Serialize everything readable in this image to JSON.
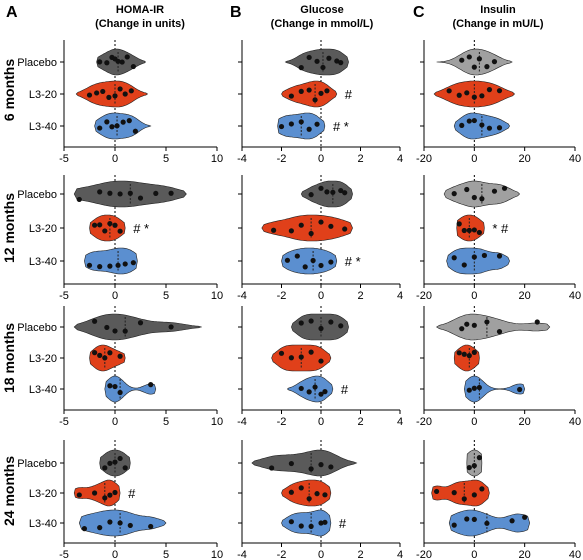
{
  "panels": [
    {
      "letter": "A",
      "title_line1": "HOMA-IR",
      "title_line2": "(Change in units)",
      "ticks": [
        "-5",
        "0",
        "5",
        "10"
      ],
      "xlim": [
        -5,
        10
      ]
    },
    {
      "letter": "B",
      "title_line1": "Glucose",
      "title_line2": "(Change in mmol/L)",
      "ticks": [
        "-4",
        "-2",
        "0",
        "2",
        "4"
      ],
      "xlim": [
        -4,
        4
      ]
    },
    {
      "letter": "C",
      "title_line1": "Insulin",
      "title_line2": "(Change in mU/L)",
      "ticks": [
        "-20",
        "0",
        "20",
        "40"
      ],
      "xlim": [
        -20,
        40
      ]
    }
  ],
  "groups": [
    "Placebo",
    "L3-20",
    "L3-40"
  ],
  "timepoints": [
    "6 months",
    "12 months",
    "18 months",
    "24 months"
  ],
  "colors": {
    "Placebo": "#5a5a5a",
    "L3-20": "#e0401a",
    "L3-40": "#5b8fd0",
    "insulin_placebo": "#a0a0a0"
  },
  "chart_data": {
    "type": "violin",
    "annotations_note_symbols": [
      "#",
      "*"
    ],
    "rows": [
      {
        "timepoint": "6 months",
        "panels": [
          {
            "metric": "HOMA-IR",
            "series": [
              {
                "group": "Placebo",
                "points": [
                  -1.5,
                  -0.8,
                  -0.3,
                  0.0,
                  0.3,
                  0.7,
                  1.2,
                  1.8
                ],
                "range": [
                  -1.8,
                  3.0
                ],
                "annot": ""
              },
              {
                "group": "L3-20",
                "points": [
                  -2.5,
                  -1.8,
                  -1.2,
                  -0.6,
                  0.0,
                  0.5,
                  1.0,
                  1.6
                ],
                "range": [
                  -3.8,
                  3.2
                ],
                "annot": ""
              },
              {
                "group": "L3-40",
                "points": [
                  -1.5,
                  -0.8,
                  -0.3,
                  0.2,
                  0.8,
                  1.4,
                  2.0
                ],
                "range": [
                  -2.0,
                  3.5
                ],
                "annot": ""
              }
            ]
          },
          {
            "metric": "Glucose",
            "series": [
              {
                "group": "Placebo",
                "points": [
                  -1.0,
                  -0.6,
                  -0.2,
                  0.1,
                  0.4,
                  0.8,
                  1.0
                ],
                "range": [
                  -1.8,
                  1.4
                ],
                "annot": ""
              },
              {
                "group": "L3-20",
                "points": [
                  -1.5,
                  -1.0,
                  -0.6,
                  -0.3,
                  0.0,
                  0.3
                ],
                "range": [
                  -2.0,
                  0.8
                ],
                "annot": "#"
              },
              {
                "group": "L3-40",
                "points": [
                  -2.0,
                  -1.5,
                  -1.0,
                  -0.6,
                  -0.2
                ],
                "range": [
                  -2.2,
                  0.2
                ],
                "annot": "# *"
              }
            ]
          },
          {
            "metric": "Insulin",
            "series": [
              {
                "group": "Placebo",
                "points": [
                  -5,
                  -2,
                  0,
                  2,
                  5,
                  8
                ],
                "range": [
                  -15,
                  15
                ],
                "annot": ""
              },
              {
                "group": "L3-20",
                "points": [
                  -10,
                  -6,
                  -3,
                  0,
                  3,
                  6,
                  10
                ],
                "range": [
                  -16,
                  16
                ],
                "annot": ""
              },
              {
                "group": "L3-40",
                "points": [
                  -5,
                  -2,
                  0,
                  3,
                  6,
                  10
                ],
                "range": [
                  -8,
                  14
                ],
                "annot": ""
              }
            ]
          }
        ]
      },
      {
        "timepoint": "12 months",
        "panels": [
          {
            "metric": "HOMA-IR",
            "series": [
              {
                "group": "Placebo",
                "points": [
                  -3.5,
                  -1.5,
                  -0.5,
                  0.5,
                  1.5,
                  2.5,
                  4.0,
                  5.5
                ],
                "range": [
                  -4.0,
                  7.0
                ],
                "annot": ""
              },
              {
                "group": "L3-20",
                "points": [
                  -2.0,
                  -1.5,
                  -1.0,
                  -0.5,
                  0.0,
                  0.5
                ],
                "range": [
                  -2.5,
                  1.0
                ],
                "annot": "# *"
              },
              {
                "group": "L3-40",
                "points": [
                  -2.5,
                  -1.5,
                  -0.5,
                  0.3,
                  1.0,
                  1.8
                ],
                "range": [
                  -3.0,
                  2.2
                ],
                "annot": ""
              }
            ]
          },
          {
            "metric": "Glucose",
            "series": [
              {
                "group": "Placebo",
                "points": [
                  -0.5,
                  0.0,
                  0.3,
                  0.6,
                  1.0,
                  1.2
                ],
                "range": [
                  -1.0,
                  1.6
                ],
                "annot": ""
              },
              {
                "group": "L3-20",
                "points": [
                  -2.4,
                  -1.5,
                  -1.0,
                  -0.5,
                  0.0,
                  0.5,
                  1.2
                ],
                "range": [
                  -3.0,
                  1.6
                ],
                "annot": ""
              },
              {
                "group": "L3-40",
                "points": [
                  -1.7,
                  -1.2,
                  -0.8,
                  -0.4,
                  0.0,
                  0.5
                ],
                "range": [
                  -2.0,
                  0.8
                ],
                "annot": "# *"
              }
            ]
          },
          {
            "metric": "Insulin",
            "series": [
              {
                "group": "Placebo",
                "points": [
                  -8,
                  -3,
                  0,
                  3,
                  8,
                  12
                ],
                "range": [
                  -12,
                  18
                ],
                "annot": ""
              },
              {
                "group": "L3-20",
                "points": [
                  -6,
                  -4,
                  -2,
                  0,
                  2
                ],
                "range": [
                  -7,
                  4
                ],
                "annot": "* #"
              },
              {
                "group": "L3-40",
                "points": [
                  -8,
                  -4,
                  0,
                  4,
                  10
                ],
                "range": [
                  -11,
                  14
                ],
                "annot": ""
              }
            ]
          }
        ]
      },
      {
        "timepoint": "18 months",
        "panels": [
          {
            "metric": "HOMA-IR",
            "series": [
              {
                "group": "Placebo",
                "points": [
                  -2.0,
                  -0.8,
                  0.0,
                  1.0,
                  2.5,
                  5.5
                ],
                "range": [
                  -4.0,
                  8.5
                ],
                "annot": ""
              },
              {
                "group": "L3-20",
                "points": [
                  -2.0,
                  -1.5,
                  -1.0,
                  -0.5,
                  0.5
                ],
                "range": [
                  -2.5,
                  1.0
                ],
                "annot": ""
              },
              {
                "group": "L3-40",
                "points": [
                  -0.5,
                  0.0,
                  0.5,
                  3.5
                ],
                "range": [
                  -1.0,
                  4.0
                ],
                "annot": ""
              }
            ]
          },
          {
            "metric": "Glucose",
            "series": [
              {
                "group": "Placebo",
                "points": [
                  -1.0,
                  -0.5,
                  0.0,
                  0.5,
                  1.0
                ],
                "range": [
                  -1.5,
                  1.4
                ],
                "annot": ""
              },
              {
                "group": "L3-20",
                "points": [
                  -2.0,
                  -1.5,
                  -1.0,
                  -0.5,
                  0.0
                ],
                "range": [
                  -2.5,
                  0.5
                ],
                "annot": ""
              },
              {
                "group": "L3-40",
                "points": [
                  -1.0,
                  -0.6,
                  -0.3,
                  0.0,
                  0.2
                ],
                "range": [
                  -1.7,
                  0.6
                ],
                "annot": "#"
              }
            ]
          },
          {
            "metric": "Insulin",
            "series": [
              {
                "group": "Placebo",
                "points": [
                  -5,
                  -3,
                  0,
                  5,
                  10,
                  25
                ],
                "range": [
                  -15,
                  30
                ],
                "annot": ""
              },
              {
                "group": "L3-20",
                "points": [
                  -6,
                  -4,
                  -2,
                  0
                ],
                "range": [
                  -8,
                  2
                ],
                "annot": ""
              },
              {
                "group": "L3-40",
                "points": [
                  -2,
                  0,
                  2,
                  18
                ],
                "range": [
                  -4,
                  20
                ],
                "annot": ""
              }
            ]
          }
        ]
      },
      {
        "timepoint": "24 months",
        "panels": [
          {
            "metric": "HOMA-IR",
            "series": [
              {
                "group": "Placebo",
                "points": [
                  -1.0,
                  -0.5,
                  0.0,
                  0.5,
                  1.0
                ],
                "range": [
                  -1.5,
                  1.5
                ],
                "annot": ""
              },
              {
                "group": "L3-20",
                "points": [
                  -3.5,
                  -2.0,
                  -1.0,
                  -0.5,
                  0.0
                ],
                "range": [
                  -4.0,
                  0.5
                ],
                "annot": "#"
              },
              {
                "group": "L3-40",
                "points": [
                  -3.0,
                  -1.5,
                  -0.5,
                  0.5,
                  1.5,
                  3.5
                ],
                "range": [
                  -3.5,
                  5.0
                ],
                "annot": ""
              }
            ]
          },
          {
            "metric": "Glucose",
            "series": [
              {
                "group": "Placebo",
                "points": [
                  -2.5,
                  -1.5,
                  -0.5,
                  0.0,
                  0.5
                ],
                "range": [
                  -3.5,
                  1.8
                ],
                "annot": ""
              },
              {
                "group": "L3-20",
                "points": [
                  -1.5,
                  -1.0,
                  -0.6,
                  -0.2,
                  0.2
                ],
                "range": [
                  -2.0,
                  0.5
                ],
                "annot": ""
              },
              {
                "group": "L3-40",
                "points": [
                  -1.5,
                  -1.0,
                  -0.5,
                  0.0,
                  0.2
                ],
                "range": [
                  -2.0,
                  0.5
                ],
                "annot": "#"
              }
            ]
          },
          {
            "metric": "Insulin",
            "series": [
              {
                "group": "Placebo",
                "points": [
                  -2,
                  0,
                  2
                ],
                "range": [
                  -3,
                  3
                ],
                "annot": ""
              },
              {
                "group": "L3-20",
                "points": [
                  -15,
                  -8,
                  -4,
                  0,
                  3
                ],
                "range": [
                  -17,
                  6
                ],
                "annot": ""
              },
              {
                "group": "L3-40",
                "points": [
                  -8,
                  -3,
                  0,
                  5,
                  15,
                  20
                ],
                "range": [
                  -10,
                  22
                ],
                "annot": ""
              }
            ]
          }
        ]
      }
    ]
  }
}
